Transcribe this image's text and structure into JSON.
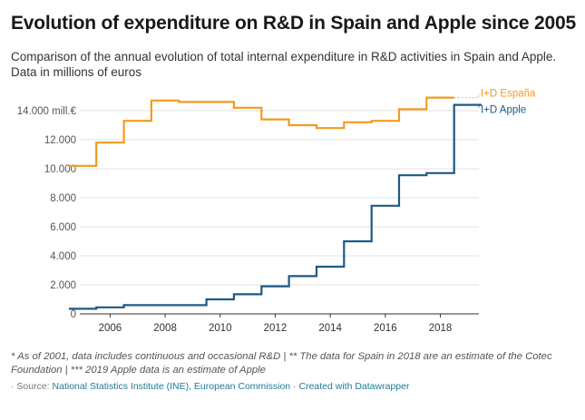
{
  "header": {
    "title": "Evolution of expenditure on R&D in Spain and Apple since 2005",
    "subtitle": "Comparison of the annual evolution of total internal expenditure in R&D activities in Spain and Apple. Data in millions of euros"
  },
  "footer": {
    "notes": "* As of 2001, data includes continuous and occasional R&D | ** The data for Spain in 2018 are an estimate of the Cotec Foundation | *** 2019 Apple data is an estimate of Apple",
    "source_prefix": "· Source: ",
    "source_link": "National Statistics Institute (INE), European Commission",
    "separator": " · ",
    "credit_link": "Created with Datawrapper"
  },
  "chart_data": {
    "type": "line",
    "step": true,
    "title": "Evolution of expenditure on R&D in Spain and Apple since 2005",
    "xlabel": "",
    "ylabel": "",
    "xlim": [
      2004.9,
      2019.4
    ],
    "ylim": [
      0,
      14000
    ],
    "x_ticks": [
      2006,
      2008,
      2010,
      2012,
      2014,
      2016,
      2018
    ],
    "y_ticks": [
      0,
      2000,
      4000,
      6000,
      8000,
      10000,
      12000,
      14000
    ],
    "y_tick_labels": [
      "0",
      "2.000",
      "4.000",
      "6.000",
      "8.000",
      "10.000",
      "12.000",
      "14.000 mill.€"
    ],
    "grid": true,
    "legend": "direct labels at line ends (right)",
    "x": [
      2005,
      2006,
      2007,
      2008,
      2009,
      2010,
      2011,
      2012,
      2013,
      2014,
      2015,
      2016,
      2017,
      2018,
      2019
    ],
    "series": [
      {
        "name": "I+D España",
        "color": "#f29a1f",
        "values": [
          10200,
          11800,
          13300,
          14700,
          14600,
          14600,
          14200,
          13400,
          13000,
          12800,
          13200,
          13300,
          14100,
          14900,
          null
        ]
      },
      {
        "name": "I+D Apple",
        "color": "#1d5a84",
        "values": [
          350,
          450,
          600,
          600,
          600,
          1000,
          1350,
          1900,
          2600,
          3250,
          5000,
          7450,
          9550,
          9700,
          14400
        ]
      }
    ]
  }
}
